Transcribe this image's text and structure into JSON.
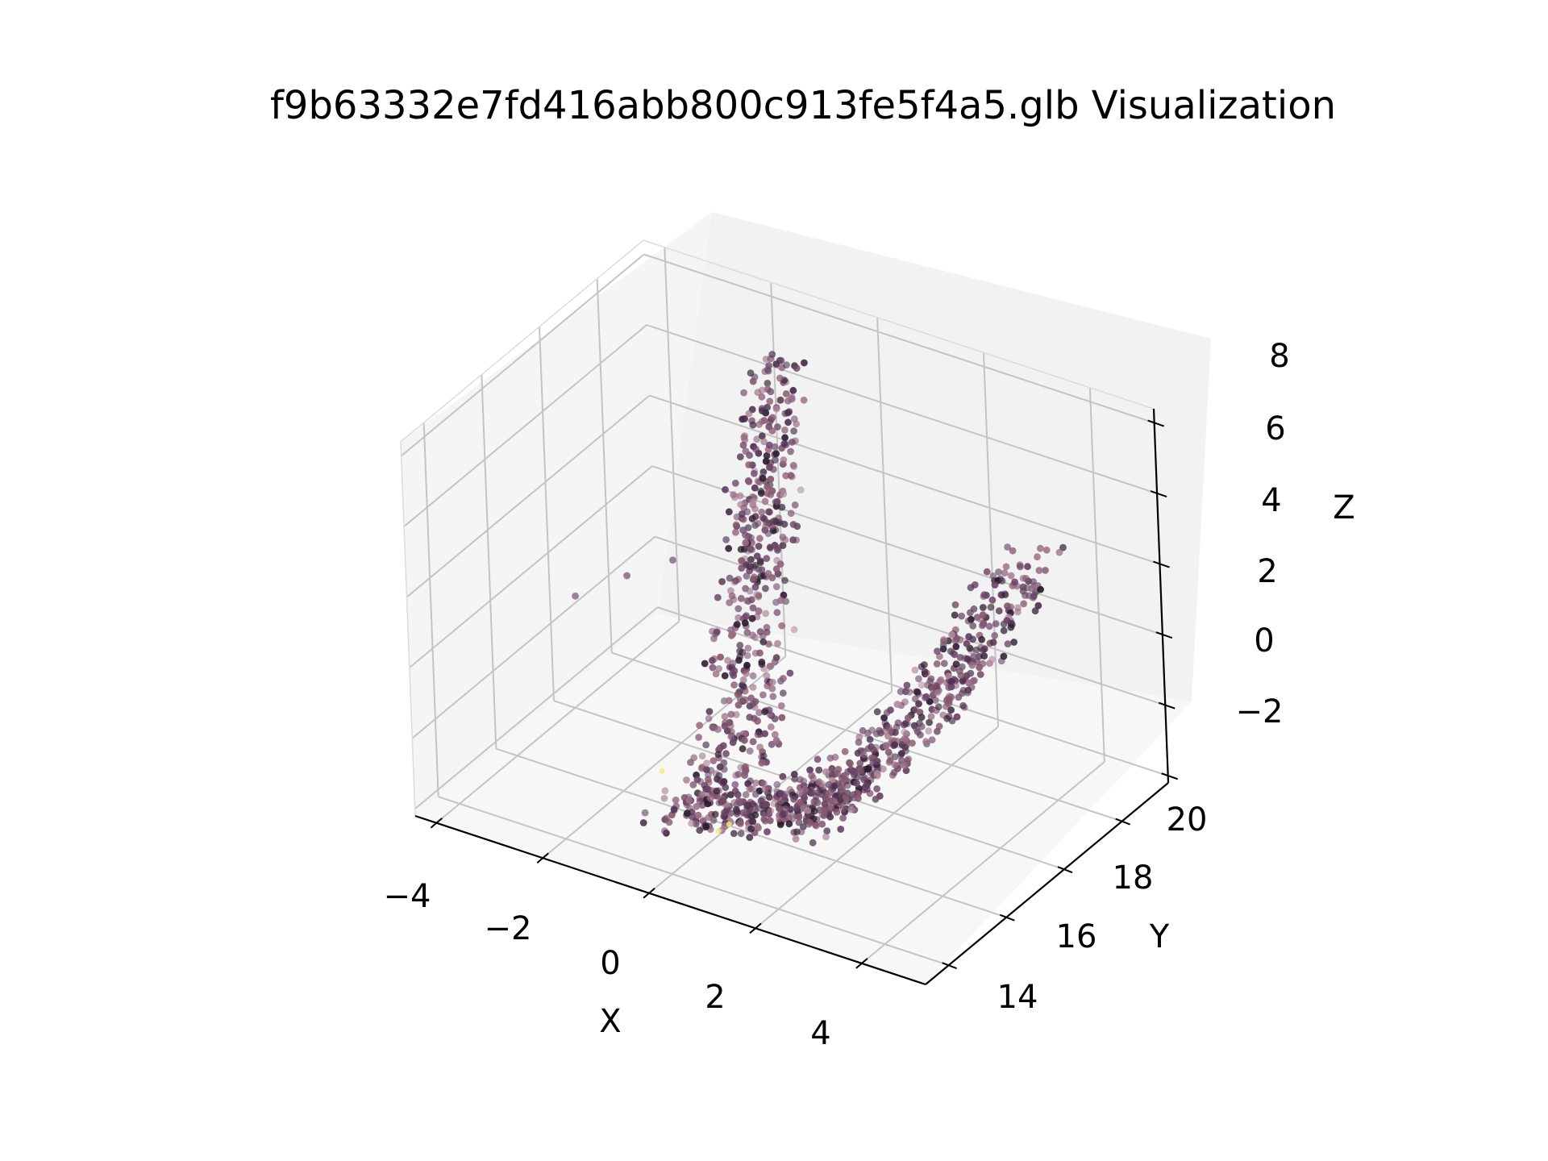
{
  "chart_data": {
    "type": "scatter",
    "projection": "3d",
    "title": "f9b63332e7fd416abb800c913fe5f4a5.glb Visualization",
    "xlabel": "X",
    "ylabel": "Y",
    "zlabel": "Z",
    "xlim": [
      -4.4,
      5.2
    ],
    "ylim": [
      13.2,
      21.6
    ],
    "zlim": [
      -2.2,
      8.4
    ],
    "x_ticks": [
      -4,
      -2,
      0,
      2,
      4
    ],
    "y_ticks": [
      14,
      16,
      18,
      20
    ],
    "z_ticks": [
      -2,
      0,
      2,
      4,
      6,
      8
    ],
    "x_tick_labels": [
      "−4",
      "−2",
      "0",
      "2",
      "4"
    ],
    "y_tick_labels": [
      "14",
      "16",
      "18",
      "20"
    ],
    "z_tick_labels": [
      "−2",
      "0",
      "2",
      "4",
      "6",
      "8"
    ],
    "grid": true,
    "point_colors": [
      "#2b1b2e",
      "#4a2f4d",
      "#6b4666",
      "#85596f",
      "#9a6c85",
      "#b08a9c"
    ],
    "outlier_color": "#f2ec7a",
    "series": [
      {
        "name": "",
        "shape": "two curved arms meeting at a low point near x≈0, y≈15, z≈-1",
        "arm_a": {
          "x_range": [
            -1.6,
            0.2
          ],
          "y_range": [
            17.5,
            21
          ],
          "z_range": [
            -1,
            7.5
          ]
        },
        "arm_b": {
          "x_range": [
            0.2,
            5.0
          ],
          "y_range": [
            14,
            18
          ],
          "z_range": [
            -1,
            6.5
          ]
        },
        "isolated_points": [
          {
            "x": -3.8,
            "y": 17.8,
            "z": 1.2
          },
          {
            "x": -3.2,
            "y": 18.5,
            "z": 1.6
          },
          {
            "x": -2.6,
            "y": 19.0,
            "z": 2.0
          }
        ]
      }
    ]
  }
}
